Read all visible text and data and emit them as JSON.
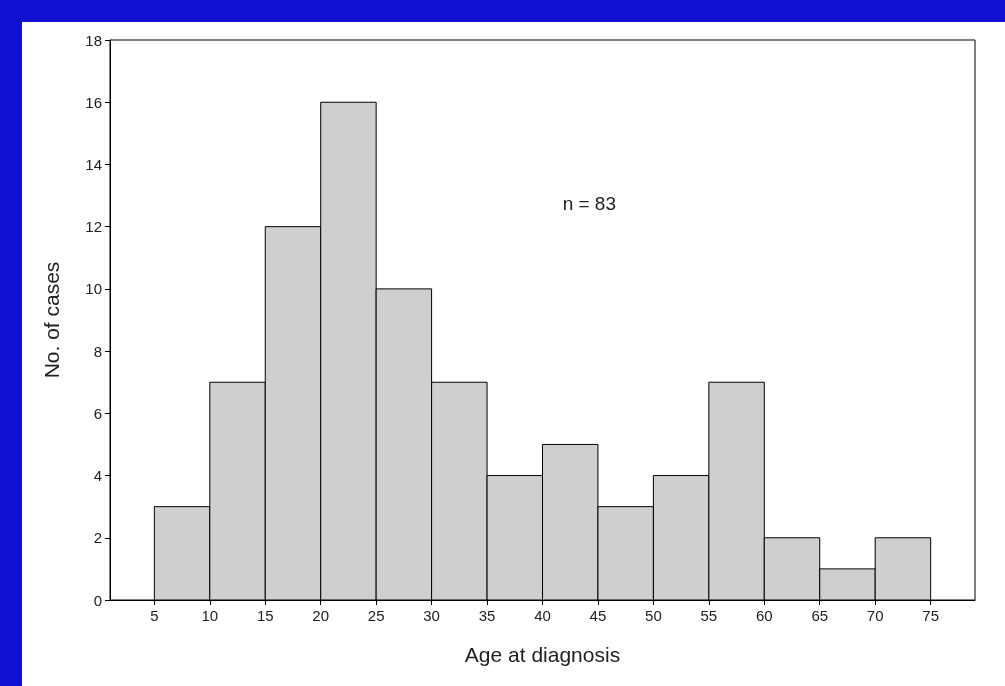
{
  "chart_data": {
    "type": "histogram",
    "xlabel": "Age at diagnosis",
    "ylabel": "No. of cases",
    "annotations": [
      "n = 83"
    ],
    "bins": [
      5,
      10,
      15,
      20,
      25,
      30,
      35,
      40,
      45,
      50,
      55,
      60,
      65,
      70,
      75
    ],
    "values": [
      3,
      7,
      12,
      16,
      10,
      7,
      4,
      5,
      3,
      4,
      7,
      2,
      1,
      2
    ],
    "color": "#cfcfcf",
    "xlim": [
      1,
      79
    ],
    "xticks": [
      5,
      10,
      15,
      20,
      25,
      30,
      35,
      40,
      45,
      50,
      55,
      60,
      65,
      70,
      75
    ],
    "ylim": [
      0,
      18
    ],
    "yticks": [
      0,
      2,
      4,
      6,
      8,
      10,
      12,
      14,
      16,
      18
    ],
    "grid": false
  }
}
